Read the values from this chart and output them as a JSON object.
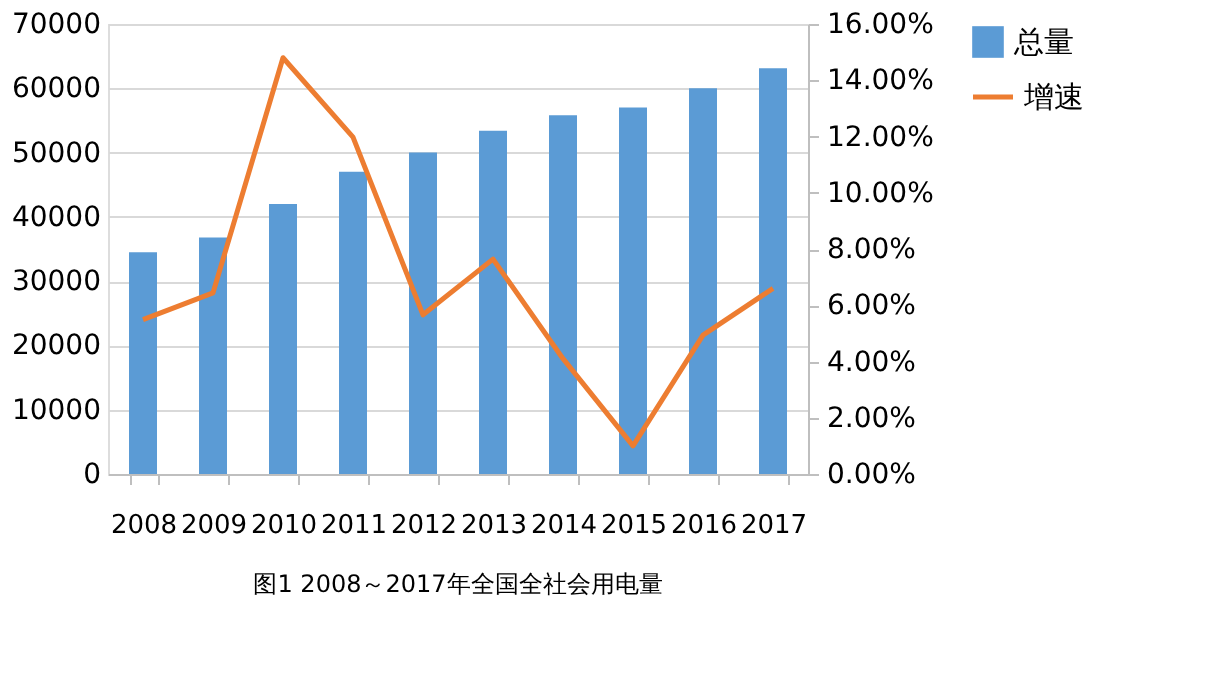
{
  "chart_data": {
    "type": "bar",
    "title": "图1 2008～2017年全国全社会用电量",
    "categories": [
      "2008",
      "2009",
      "2010",
      "2011",
      "2012",
      "2013",
      "2014",
      "2015",
      "2016",
      "2017"
    ],
    "series": [
      {
        "name": "总量",
        "color": "#5b9bd5",
        "values": [
          34500,
          36800,
          42000,
          47000,
          50000,
          53400,
          55800,
          57000,
          60000,
          63100
        ]
      },
      {
        "name": "增速",
        "type": "line",
        "axis": "y2",
        "color": "#ed7d31",
        "values": [
          5.49,
          6.44,
          14.8,
          11.98,
          5.66,
          7.64,
          4.1,
          1.0,
          4.94,
          6.6
        ]
      }
    ],
    "ylim": [
      0,
      70000
    ],
    "yticks": [
      0,
      10000,
      20000,
      30000,
      40000,
      50000,
      60000,
      70000
    ],
    "y2lim": [
      0,
      16
    ],
    "y2ticks": [
      {
        "value": 0,
        "label": "0.00%"
      },
      {
        "value": 2,
        "label": "2.00%"
      },
      {
        "value": 4,
        "label": "4.00%"
      },
      {
        "value": 6,
        "label": "6.00%"
      },
      {
        "value": 8,
        "label": "8.00%"
      },
      {
        "value": 10,
        "label": "10.00%"
      },
      {
        "value": 12,
        "label": "12.00%"
      },
      {
        "value": 14,
        "label": "14.00%"
      },
      {
        "value": 16,
        "label": "16.00%"
      }
    ],
    "grid": "y",
    "legend": "right",
    "line_style": "solid",
    "marker": "none"
  }
}
